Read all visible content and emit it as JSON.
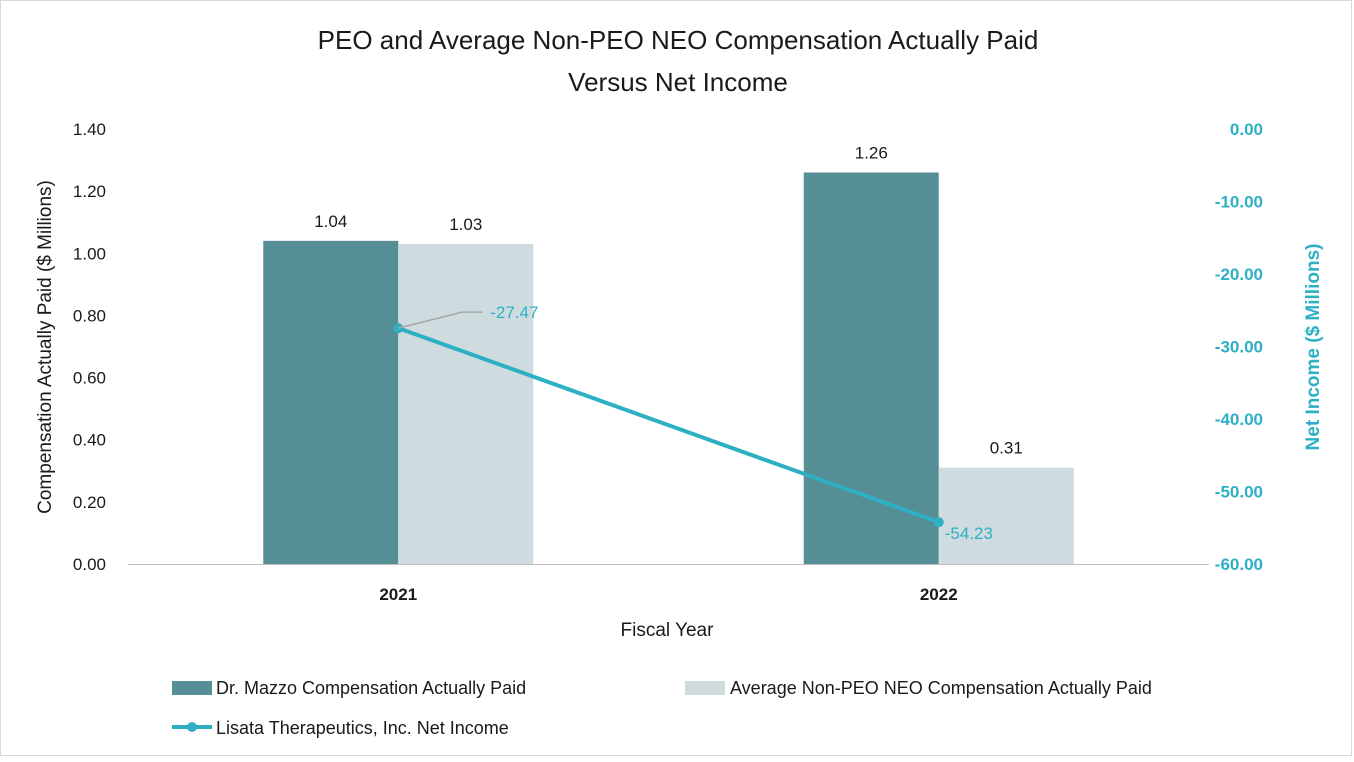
{
  "chart_data": {
    "type": "bar",
    "title_lines": [
      "PEO and Average Non-PEO NEO Compensation Actually Paid",
      "Versus Net Income"
    ],
    "xlabel": "Fiscal Year",
    "ylabel": "Compensation Actually Paid ($ Millions)",
    "y2label": "Net Income ($ Millions)",
    "categories": [
      "2021",
      "2022"
    ],
    "ylim": [
      0,
      1.4
    ],
    "y_ticks": [
      "0.00",
      "0.20",
      "0.40",
      "0.60",
      "0.80",
      "1.00",
      "1.20",
      "1.40"
    ],
    "y2lim": [
      -60,
      0
    ],
    "y2_ticks": [
      "0.00",
      "-10.00",
      "-20.00",
      "-30.00",
      "-40.00",
      "-50.00",
      "-60.00"
    ],
    "grid": false,
    "legend_position": "bottom",
    "series": [
      {
        "name": "Dr. Mazzo Compensation Actually Paid",
        "kind": "bar",
        "axis": "left",
        "values": [
          1.04,
          1.26
        ],
        "labels": [
          "1.04",
          "1.26"
        ],
        "color": "#558e94"
      },
      {
        "name": "Average Non-PEO NEO Compensation Actually Paid",
        "kind": "bar",
        "axis": "left",
        "values": [
          1.03,
          0.31
        ],
        "labels": [
          "1.03",
          "0.31"
        ],
        "color": "#cfdcdf"
      },
      {
        "name": "Lisata Therapeutics, Inc. Net Income",
        "kind": "line",
        "axis": "right",
        "values": [
          -27.47,
          -54.23
        ],
        "labels": [
          "-27.47",
          "-54.23"
        ],
        "color": "#2eb0c4"
      }
    ]
  }
}
